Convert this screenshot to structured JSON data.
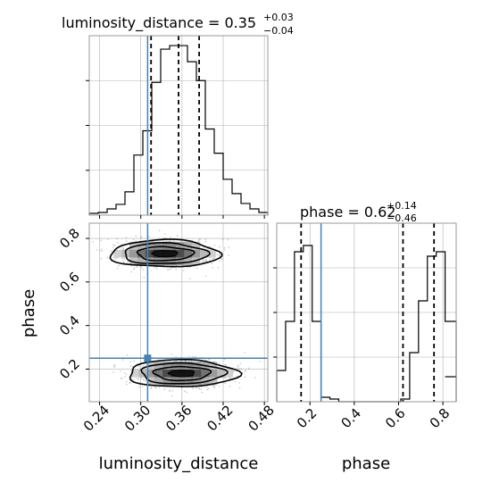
{
  "chart_data": {
    "type": "corner",
    "params": [
      "luminosity_distance",
      "phase"
    ],
    "truths": {
      "luminosity_distance": 0.31,
      "phase": 0.25
    },
    "colors": {
      "hist": "#000000",
      "truth": "#4682b4",
      "grid": "#b0b0b0",
      "samples": "#9a9a9a"
    },
    "panels": [
      {
        "id": "lumdist-hist",
        "type": "histogram",
        "param": "luminosity_distance",
        "title": {
          "main": "luminosity_distance = 0.35",
          "plus": "+0.03",
          "minus": "−0.04"
        },
        "xlim": [
          0.225,
          0.485
        ],
        "bins": [
          0.225,
          0.238,
          0.251,
          0.264,
          0.277,
          0.29,
          0.303,
          0.316,
          0.329,
          0.342,
          0.355,
          0.368,
          0.381,
          0.394,
          0.407,
          0.42,
          0.433,
          0.446,
          0.459,
          0.472,
          0.485
        ],
        "counts": [
          2,
          3,
          7,
          12,
          26,
          67,
          94,
          148,
          185,
          189,
          189,
          171,
          150,
          96,
          69,
          40,
          24,
          13,
          7,
          3
        ],
        "ymax": 200,
        "quantiles": [
          0.315,
          0.355,
          0.385
        ],
        "truth": 0.31
      },
      {
        "id": "phase-hist",
        "type": "histogram",
        "param": "phase",
        "title": {
          "main": "phase = 0.62",
          "plus": "+0.14",
          "minus": "−0.46"
        },
        "xlim": [
          0.05,
          0.86
        ],
        "bins": [
          0.05,
          0.09,
          0.13,
          0.17,
          0.21,
          0.25,
          0.29,
          0.33,
          0.37,
          0.41,
          0.45,
          0.49,
          0.53,
          0.57,
          0.61,
          0.65,
          0.69,
          0.73,
          0.77,
          0.81,
          0.86
        ],
        "counts": [
          35,
          90,
          168,
          175,
          90,
          5,
          3,
          0,
          0,
          0,
          0,
          0,
          0,
          0,
          3,
          55,
          113,
          163,
          168,
          90
        ],
        "extra_bin": {
          "x": [
            0.81,
            0.86
          ],
          "count": 28
        },
        "ymax": 200,
        "quantiles": [
          0.16,
          0.62,
          0.76
        ],
        "truth": 0.25
      },
      {
        "id": "joint",
        "type": "2d",
        "xparam": "luminosity_distance",
        "yparam": "phase",
        "xlim": [
          0.225,
          0.485
        ],
        "ylim": [
          0.05,
          0.87
        ],
        "clusters": [
          {
            "cx": 0.335,
            "cy": 0.73,
            "sx": 0.034,
            "sy": 0.03
          },
          {
            "cx": 0.36,
            "cy": 0.18,
            "sx": 0.034,
            "sy": 0.03
          }
        ],
        "truth": {
          "x": 0.31,
          "y": 0.25
        }
      }
    ],
    "ticks": {
      "luminosity_distance": [
        "0.24",
        "0.30",
        "0.36",
        "0.42",
        "0.48"
      ],
      "phase": [
        "0.2",
        "0.4",
        "0.6",
        "0.8"
      ]
    },
    "xlabels": {
      "left": "luminosity_distance",
      "right": "phase"
    },
    "ylabel": "phase"
  }
}
